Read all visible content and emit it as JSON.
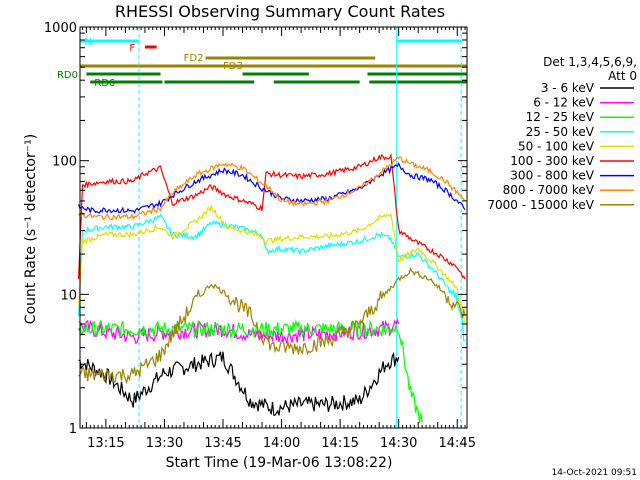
{
  "chart_data": {
    "type": "line",
    "title": "RHESSI Observing Summary Count Rates",
    "xlabel": "Start Time (19-Mar-06 13:08:22)",
    "ylabel": "Count Rate (s⁻¹ detector⁻¹)",
    "yscale": "log",
    "ylim": [
      1,
      1000
    ],
    "xlim": [
      "13:08:22",
      "14:47:30"
    ],
    "x_ticks": [
      "13:15",
      "13:30",
      "13:45",
      "14:00",
      "14:15",
      "14:30",
      "14:45"
    ],
    "y_ticks": [
      "1",
      "10",
      "100",
      "1000"
    ],
    "legend_header": [
      "Det 1,3,4,5,6,9,",
      "Att 0"
    ],
    "legend_position": "right",
    "series": [
      {
        "name": "3 - 6 keV",
        "color": "#000000",
        "points": [
          [
            "13:08",
            3.2
          ],
          [
            "13:15",
            2.5
          ],
          [
            "13:22",
            1.6
          ],
          [
            "13:30",
            2.6
          ],
          [
            "13:38",
            3.0
          ],
          [
            "13:45",
            3.4
          ],
          [
            "13:52",
            1.6
          ],
          [
            "13:58",
            1.4
          ],
          [
            "14:05",
            1.5
          ],
          [
            "14:12",
            1.5
          ],
          [
            "14:20",
            1.6
          ],
          [
            "14:27",
            3.1
          ],
          [
            "14:30",
            3.4
          ]
        ]
      },
      {
        "name": "6 - 12 keV",
        "color": "#ff00ff",
        "points": [
          [
            "13:08",
            5.8
          ],
          [
            "13:15",
            5.2
          ],
          [
            "13:22",
            4.8
          ],
          [
            "13:30",
            5.2
          ],
          [
            "13:38",
            5.4
          ],
          [
            "13:45",
            5.5
          ],
          [
            "13:52",
            5.0
          ],
          [
            "13:58",
            4.9
          ],
          [
            "14:05",
            5.0
          ],
          [
            "14:12",
            5.1
          ],
          [
            "14:20",
            5.3
          ],
          [
            "14:27",
            5.6
          ],
          [
            "14:30",
            6.0
          ]
        ]
      },
      {
        "name": "12 - 25 keV",
        "color": "#00ff00",
        "points": [
          [
            "13:08",
            5.5
          ],
          [
            "13:15",
            5.5
          ],
          [
            "13:22",
            5.5
          ],
          [
            "13:30",
            5.5
          ],
          [
            "13:38",
            5.5
          ],
          [
            "13:45",
            5.5
          ],
          [
            "13:52",
            5.5
          ],
          [
            "13:58",
            5.5
          ],
          [
            "14:05",
            5.5
          ],
          [
            "14:12",
            5.5
          ],
          [
            "14:20",
            5.5
          ],
          [
            "14:27",
            5.5
          ],
          [
            "14:30",
            5.8
          ],
          [
            "14:33",
            1.8
          ],
          [
            "14:36",
            1.1
          ]
        ]
      },
      {
        "name": "25 - 50 keV",
        "color": "#00ffff",
        "points": [
          [
            "13:08",
            6.5
          ],
          [
            "13:09",
            30
          ],
          [
            "13:15",
            32
          ],
          [
            "13:22",
            32
          ],
          [
            "13:29",
            38
          ],
          [
            "13:32",
            28
          ],
          [
            "13:38",
            27
          ],
          [
            "13:42",
            34
          ],
          [
            "13:46",
            33
          ],
          [
            "13:52",
            30
          ],
          [
            "13:55",
            28
          ],
          [
            "13:56",
            21
          ],
          [
            "14:00",
            22
          ],
          [
            "14:05",
            21
          ],
          [
            "14:12",
            23
          ],
          [
            "14:20",
            25
          ],
          [
            "14:25",
            28
          ],
          [
            "14:28",
            26
          ],
          [
            "14:30",
            19
          ],
          [
            "14:35",
            20
          ],
          [
            "14:40",
            14
          ],
          [
            "14:45",
            9
          ],
          [
            "14:47",
            4.5
          ]
        ]
      },
      {
        "name": "50 - 100 keV",
        "color": "#e0e000",
        "points": [
          [
            "13:08",
            7.5
          ],
          [
            "13:09",
            25
          ],
          [
            "13:15",
            28
          ],
          [
            "13:22",
            28
          ],
          [
            "13:29",
            32
          ],
          [
            "13:32",
            27
          ],
          [
            "13:38",
            35
          ],
          [
            "13:42",
            45
          ],
          [
            "13:46",
            32
          ],
          [
            "13:52",
            29
          ],
          [
            "13:55",
            27
          ],
          [
            "13:56",
            25
          ],
          [
            "14:00",
            26
          ],
          [
            "14:05",
            27
          ],
          [
            "14:12",
            27
          ],
          [
            "14:20",
            30
          ],
          [
            "14:25",
            37
          ],
          [
            "14:28",
            40
          ],
          [
            "14:30",
            18
          ],
          [
            "14:35",
            22
          ],
          [
            "14:40",
            16
          ],
          [
            "14:45",
            11
          ],
          [
            "14:47",
            6
          ]
        ]
      },
      {
        "name": "100 - 300 keV",
        "color": "#ff0000",
        "points": [
          [
            "13:08",
            13
          ],
          [
            "13:09",
            66
          ],
          [
            "13:15",
            70
          ],
          [
            "13:22",
            70
          ],
          [
            "13:25",
            80
          ],
          [
            "13:29",
            88
          ],
          [
            "13:32",
            48
          ],
          [
            "13:38",
            55
          ],
          [
            "13:42",
            64
          ],
          [
            "13:46",
            55
          ],
          [
            "13:52",
            48
          ],
          [
            "13:55",
            44
          ],
          [
            "13:56",
            80
          ],
          [
            "14:00",
            78
          ],
          [
            "14:05",
            76
          ],
          [
            "14:12",
            80
          ],
          [
            "14:20",
            90
          ],
          [
            "14:25",
            106
          ],
          [
            "14:28",
            107
          ],
          [
            "14:30",
            30
          ],
          [
            "14:35",
            24
          ],
          [
            "14:40",
            20
          ],
          [
            "14:45",
            16
          ],
          [
            "14:47",
            13
          ]
        ]
      },
      {
        "name": "300 - 800 keV",
        "color": "#0000ff",
        "points": [
          [
            "13:08",
            45
          ],
          [
            "13:12",
            42
          ],
          [
            "13:15",
            43
          ],
          [
            "13:22",
            42
          ],
          [
            "13:29",
            48
          ],
          [
            "13:32",
            55
          ],
          [
            "13:38",
            70
          ],
          [
            "13:45",
            85
          ],
          [
            "13:50",
            78
          ],
          [
            "13:55",
            62
          ],
          [
            "13:58",
            56
          ],
          [
            "14:00",
            52
          ],
          [
            "14:05",
            50
          ],
          [
            "14:12",
            52
          ],
          [
            "14:20",
            62
          ],
          [
            "14:25",
            78
          ],
          [
            "14:30",
            92
          ],
          [
            "14:33",
            78
          ],
          [
            "14:38",
            72
          ],
          [
            "14:42",
            60
          ],
          [
            "14:45",
            50
          ],
          [
            "14:47",
            43
          ]
        ]
      },
      {
        "name": "800 - 7000 keV",
        "color": "#ff8800",
        "points": [
          [
            "13:08",
            40
          ],
          [
            "13:12",
            38
          ],
          [
            "13:15",
            38
          ],
          [
            "13:22",
            38
          ],
          [
            "13:29",
            44
          ],
          [
            "13:32",
            57
          ],
          [
            "13:38",
            78
          ],
          [
            "13:45",
            95
          ],
          [
            "13:50",
            88
          ],
          [
            "13:55",
            68
          ],
          [
            "13:58",
            58
          ],
          [
            "14:00",
            50
          ],
          [
            "14:05",
            47
          ],
          [
            "14:12",
            50
          ],
          [
            "14:20",
            62
          ],
          [
            "14:25",
            80
          ],
          [
            "14:30",
            105
          ],
          [
            "14:33",
            95
          ],
          [
            "14:38",
            84
          ],
          [
            "14:42",
            70
          ],
          [
            "14:45",
            58
          ],
          [
            "14:47",
            50
          ]
        ]
      },
      {
        "name": "7000 - 15000 keV",
        "color": "#9c8400",
        "points": [
          [
            "13:08",
            2.5
          ],
          [
            "13:15",
            2.5
          ],
          [
            "13:22",
            2.5
          ],
          [
            "13:29",
            3.5
          ],
          [
            "13:32",
            5
          ],
          [
            "13:38",
            9
          ],
          [
            "13:42",
            12
          ],
          [
            "13:46",
            10
          ],
          [
            "13:52",
            7
          ],
          [
            "13:55",
            5
          ],
          [
            "13:58",
            4
          ],
          [
            "14:00",
            4
          ],
          [
            "14:05",
            4
          ],
          [
            "14:12",
            4.5
          ],
          [
            "14:20",
            6
          ],
          [
            "14:25",
            9
          ],
          [
            "14:30",
            13
          ],
          [
            "14:33",
            15
          ],
          [
            "14:38",
            13
          ],
          [
            "14:42",
            10
          ],
          [
            "14:45",
            8
          ],
          [
            "14:47",
            7
          ]
        ]
      }
    ],
    "annotations": {
      "vlines_solid": [
        "13:08:22",
        "14:29:30"
      ],
      "vlines_dashed": [
        "13:23:30",
        "14:46:00"
      ],
      "bars": [
        {
          "label": "N",
          "color": "#00ffff",
          "segments": [
            [
              "13:08:22",
              "13:23:30"
            ],
            [
              "14:29:30",
              "14:46:00"
            ]
          ]
        },
        {
          "label": "F",
          "color": "#ff0000",
          "segments": [
            [
              "13:25:00",
              "13:28:00"
            ]
          ]
        },
        {
          "label": "FD2",
          "color": "#9c8400",
          "segments": [
            [
              "13:40:30",
              "14:24:00"
            ]
          ]
        },
        {
          "label": "FD3",
          "color": "#9c8400",
          "segments": [
            [
              "13:08:22",
              "14:47:30"
            ]
          ]
        },
        {
          "label": "RD0",
          "color": "#008000",
          "segments": [
            [
              "13:10:00",
              "13:29:00"
            ],
            [
              "13:50:00",
              "14:07:00"
            ],
            [
              "14:22:00",
              "14:47:30"
            ]
          ]
        },
        {
          "label": "RD6",
          "color": "#008000",
          "segments": [
            [
              "13:11:00",
              "13:29:30"
            ],
            [
              "13:30:00",
              "13:53:00"
            ],
            [
              "13:58:00",
              "14:20:00"
            ],
            [
              "14:22:30",
              "14:47:30"
            ]
          ]
        }
      ]
    }
  },
  "footer_date": "14-Oct-2021 09:51"
}
